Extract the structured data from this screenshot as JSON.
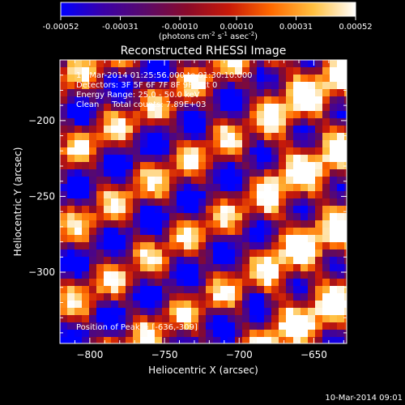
{
  "colorbar": {
    "ticks": [
      "-0.00052",
      "-0.00031",
      "-0.00010",
      "0.00010",
      "0.00031",
      "0.00052"
    ],
    "unit_text": "(photons cm",
    "unit_sup1": "-2",
    "unit_mid": " s",
    "unit_sup2": "-1",
    "unit_end": " asec",
    "unit_sup3": "-2",
    "unit_close": ")",
    "colors": [
      "#0000ff",
      "#3a00a8",
      "#5a0a6a",
      "#8a0a2a",
      "#c81a08",
      "#ff6a00",
      "#ffc040",
      "#ffffff"
    ]
  },
  "chart_data": {
    "type": "heatmap",
    "title": "Reconstructed RHESSI Image",
    "xlabel": "Heliocentric X (arcsec)",
    "ylabel": "Heliocentric Y (arcsec)",
    "xlim": [
      -820,
      -628
    ],
    "ylim": [
      -347,
      -160
    ],
    "xticks": [
      -800,
      -750,
      -700,
      -650
    ],
    "yticks": [
      -200,
      -250,
      -300
    ],
    "xtick_labels": [
      "−800",
      "−750",
      "−700",
      "−650"
    ],
    "ytick_labels": [
      "−200",
      "−250",
      "−300"
    ],
    "clim": [
      -0.00052,
      0.00052
    ],
    "annotation_lines": [
      "10-Mar-2014 01:25:56.000 to 01:30:10.000",
      "Detectors: 3F 5F 6F 7F 8F 9F, Att 0",
      "Energy Range: 25.0 - 50.0 keV",
      "Clean     Total counts: 7.89E+03"
    ],
    "peak_label": "Position of Peak = [-636,-309]",
    "peak_position": [
      -636,
      -309
    ]
  },
  "timestamp": "10-Mar-2014 09:01"
}
